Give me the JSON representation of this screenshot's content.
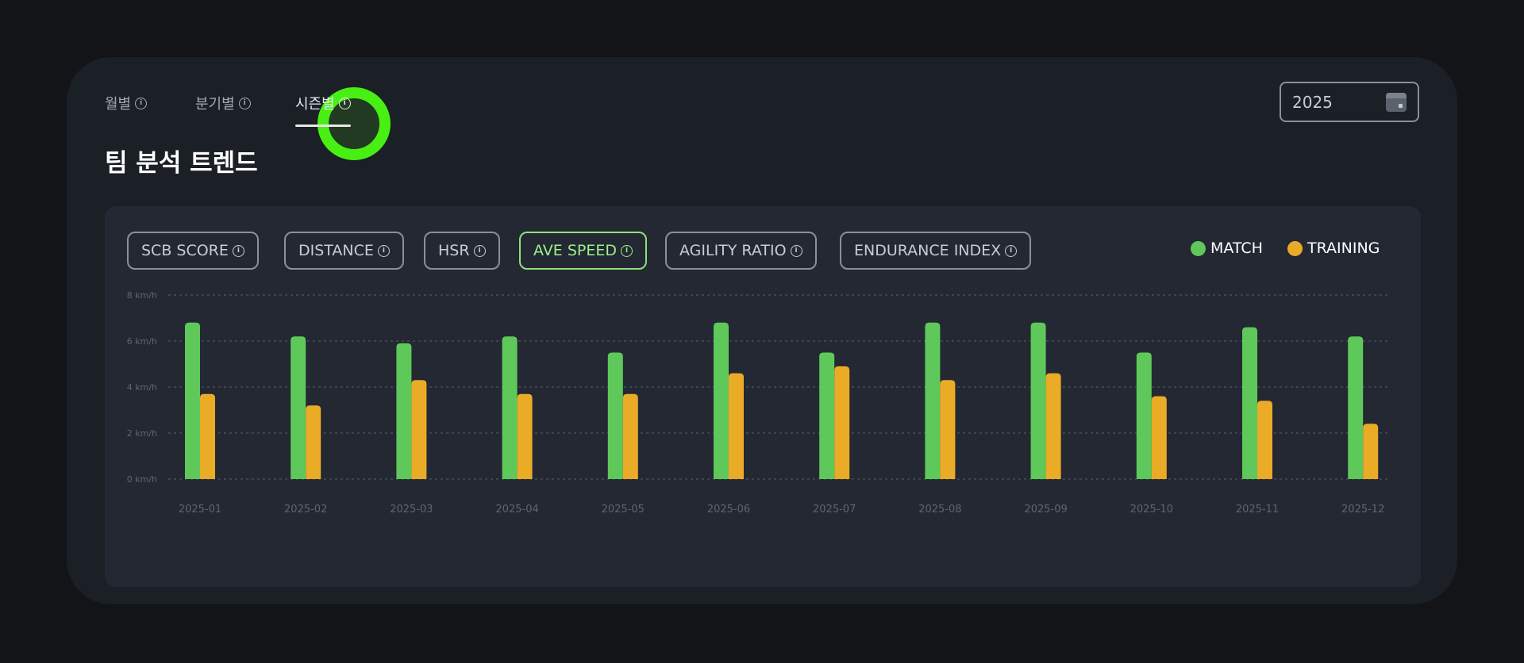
{
  "tabs": [
    {
      "label": "월별"
    },
    {
      "label": "분기별"
    },
    {
      "label": "시즌별"
    }
  ],
  "title": "팀 분석 트렌드",
  "year_picker": {
    "value": "2025",
    "icon": "calendar-icon"
  },
  "metrics": [
    {
      "label": "SCB SCORE"
    },
    {
      "label": "DISTANCE"
    },
    {
      "label": "HSR"
    },
    {
      "label": "AVE SPEED"
    },
    {
      "label": "AGILITY RATIO"
    },
    {
      "label": "ENDURANCE INDEX"
    }
  ],
  "active_metric": "AVE SPEED",
  "active_tab": "시즌별",
  "legend": [
    {
      "label": "MATCH",
      "color": "#5ec95a"
    },
    {
      "label": "TRAINING",
      "color": "#eaab27"
    }
  ],
  "colors": {
    "accent": "#8ee27a",
    "highlight": "#47f012"
  },
  "chart_data": {
    "type": "bar",
    "categories": [
      "2025-01",
      "2025-02",
      "2025-03",
      "2025-04",
      "2025-05",
      "2025-06",
      "2025-07",
      "2025-08",
      "2025-09",
      "2025-10",
      "2025-11",
      "2025-12"
    ],
    "series": [
      {
        "name": "MATCH",
        "color": "#5ec95a",
        "values": [
          6.8,
          6.2,
          5.9,
          6.2,
          5.5,
          6.8,
          5.5,
          6.8,
          6.8,
          5.5,
          6.6,
          6.2
        ]
      },
      {
        "name": "TRAINING",
        "color": "#eaab27",
        "values": [
          3.7,
          3.2,
          4.3,
          3.7,
          3.7,
          4.6,
          4.9,
          4.3,
          4.6,
          3.6,
          3.4,
          2.4
        ]
      }
    ],
    "yticks": [
      "0 km/h",
      "2 km/h",
      "4 km/h",
      "6 km/h",
      "8 km/h"
    ],
    "ylim": [
      0,
      8
    ],
    "grid": true,
    "legend_position": "top-right"
  }
}
